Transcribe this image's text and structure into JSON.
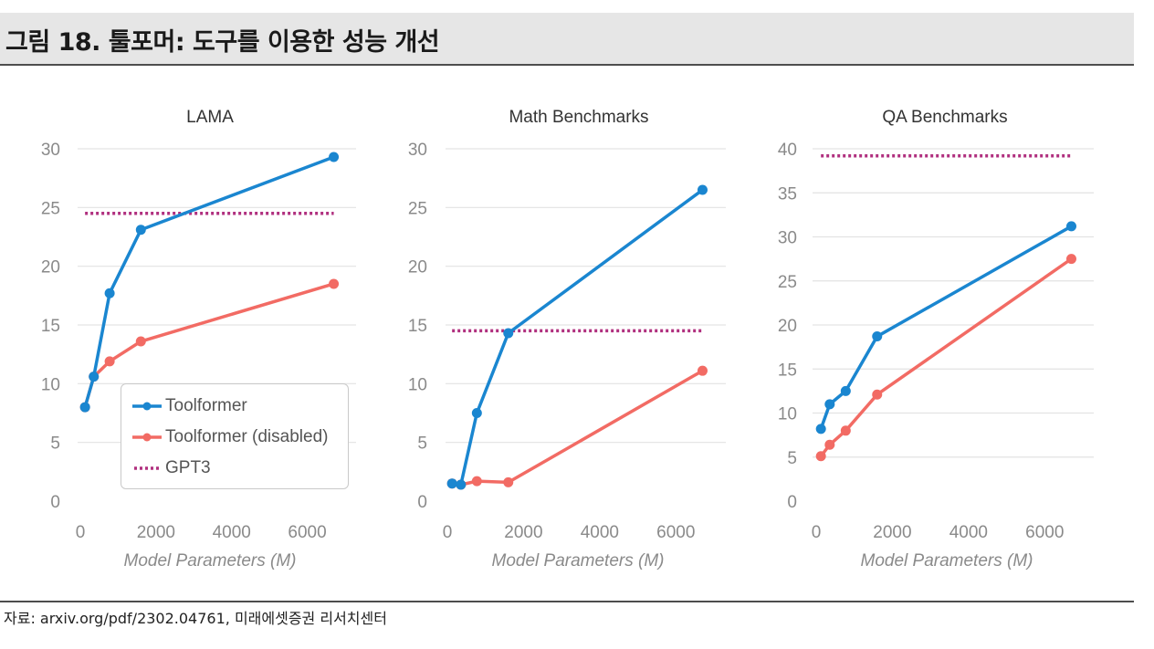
{
  "header": {
    "title": "그림 18. 툴포머: 도구를 이용한 성능 개선"
  },
  "footer": {
    "source": "자료: arxiv.org/pdf/2302.04761, 미래에셋증권 리서치센터"
  },
  "legend": {
    "items": [
      {
        "label": "Toolformer",
        "color": "#1a86d0",
        "style": "line-marker"
      },
      {
        "label": "Toolformer (disabled)",
        "color": "#f26b64",
        "style": "line-marker"
      },
      {
        "label": "GPT3",
        "color": "#b0307f",
        "style": "dotted"
      }
    ]
  },
  "chart_data": [
    {
      "type": "line",
      "title": "LAMA",
      "xlabel": "Model Parameters (M)",
      "ylabel": "",
      "xlim": [
        0,
        7000
      ],
      "ylim": [
        0,
        30
      ],
      "xticks": [
        0,
        2000,
        4000,
        6000
      ],
      "yticks": [
        0,
        5,
        10,
        15,
        20,
        25,
        30
      ],
      "grid": "horizontal",
      "legend": "bottom-right",
      "series": [
        {
          "name": "Toolformer",
          "color": "#1a86d0",
          "x": [
            124,
            355,
            775,
            1600,
            6700
          ],
          "values": [
            8.0,
            10.6,
            17.7,
            23.1,
            29.3
          ]
        },
        {
          "name": "Toolformer (disabled)",
          "color": "#f26b64",
          "x": [
            124,
            355,
            775,
            1600,
            6700
          ],
          "values": [
            8.0,
            10.6,
            11.9,
            13.6,
            18.5
          ]
        },
        {
          "name": "GPT3",
          "color": "#b0307f",
          "style": "dotted",
          "x": [
            124,
            6700
          ],
          "values": [
            24.5,
            24.5
          ]
        }
      ]
    },
    {
      "type": "line",
      "title": "Math Benchmarks",
      "xlabel": "Model Parameters (M)",
      "ylabel": "",
      "xlim": [
        0,
        7000
      ],
      "ylim": [
        0,
        30
      ],
      "xticks": [
        0,
        2000,
        4000,
        6000
      ],
      "yticks": [
        0,
        5,
        10,
        15,
        20,
        25,
        30
      ],
      "grid": "horizontal",
      "series": [
        {
          "name": "Toolformer",
          "color": "#1a86d0",
          "x": [
            124,
            355,
            775,
            1600,
            6700
          ],
          "values": [
            1.5,
            1.4,
            7.5,
            14.3,
            26.5
          ]
        },
        {
          "name": "Toolformer (disabled)",
          "color": "#f26b64",
          "x": [
            124,
            355,
            775,
            1600,
            6700
          ],
          "values": [
            1.5,
            1.4,
            1.7,
            1.6,
            11.1
          ]
        },
        {
          "name": "GPT3",
          "color": "#b0307f",
          "style": "dotted",
          "x": [
            124,
            6700
          ],
          "values": [
            14.5,
            14.5
          ]
        }
      ]
    },
    {
      "type": "line",
      "title": "QA Benchmarks",
      "xlabel": "Model Parameters (M)",
      "ylabel": "",
      "xlim": [
        0,
        7000
      ],
      "ylim": [
        0,
        40
      ],
      "xticks": [
        0,
        2000,
        4000,
        6000
      ],
      "yticks": [
        0,
        5,
        10,
        15,
        20,
        25,
        30,
        35,
        40
      ],
      "grid": "horizontal",
      "series": [
        {
          "name": "Toolformer",
          "color": "#1a86d0",
          "x": [
            124,
            355,
            775,
            1600,
            6700
          ],
          "values": [
            8.2,
            11.0,
            12.5,
            18.7,
            31.2
          ]
        },
        {
          "name": "Toolformer (disabled)",
          "color": "#f26b64",
          "x": [
            124,
            355,
            775,
            1600,
            6700
          ],
          "values": [
            5.1,
            6.4,
            8.0,
            12.1,
            27.5
          ]
        },
        {
          "name": "GPT3",
          "color": "#b0307f",
          "style": "dotted",
          "x": [
            124,
            6700
          ],
          "values": [
            39.2,
            39.2
          ]
        }
      ]
    }
  ]
}
